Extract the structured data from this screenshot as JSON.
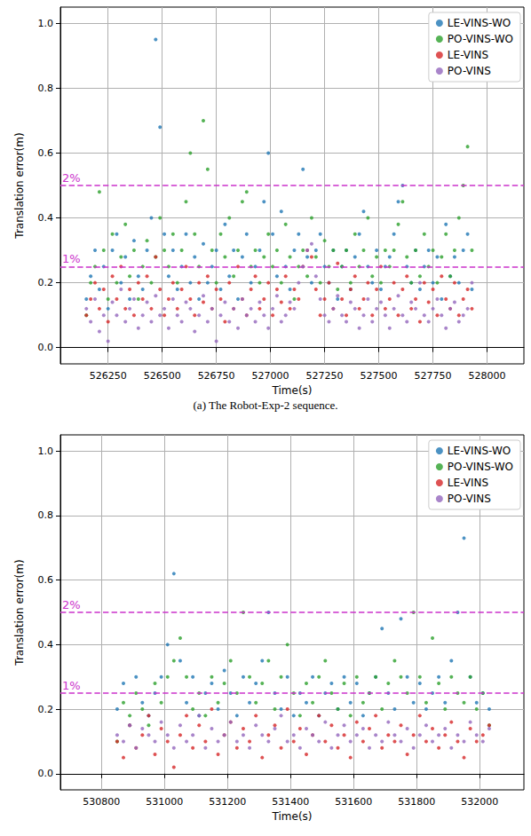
{
  "chart_data": [
    {
      "type": "scatter",
      "caption": "(a) The Robot-Exp-2 sequence.",
      "x_label": "Time(s)",
      "y_label": "Translation error(m)",
      "grid": true,
      "legend": "upper right",
      "marker": "circle",
      "xlim": [
        526030,
        528170
      ],
      "xticks": [
        526250,
        526500,
        526750,
        527000,
        527250,
        527500,
        527750,
        528000
      ],
      "ylim": [
        -0.05,
        1.05
      ],
      "yticks": [
        {
          "value": 0,
          "label": "0.0"
        },
        {
          "value": 0.2,
          "label": "0.2"
        },
        {
          "value": 0.4,
          "label": "0.4"
        },
        {
          "value": 0.6,
          "label": "0.6"
        },
        {
          "value": 0.8,
          "label": "0.8"
        },
        {
          "value": 1,
          "label": "1.0"
        }
      ],
      "reference_lines": [
        {
          "value": 0.5,
          "label": "2%"
        },
        {
          "value": 0.25,
          "label": "1%"
        }
      ],
      "x": [
        526150,
        526170,
        526190,
        526210,
        526230,
        526250,
        526270,
        526290,
        526310,
        526330,
        526350,
        526370,
        526390,
        526410,
        526430,
        526450,
        526470,
        526490,
        526510,
        526530,
        526550,
        526570,
        526590,
        526610,
        526630,
        526650,
        526670,
        526690,
        526710,
        526730,
        526750,
        526770,
        526790,
        526810,
        526830,
        526850,
        526870,
        526890,
        526910,
        526930,
        526950,
        526970,
        526990,
        527010,
        527030,
        527050,
        527070,
        527090,
        527110,
        527130,
        527150,
        527170,
        527190,
        527210,
        527230,
        527250,
        527270,
        527290,
        527310,
        527330,
        527350,
        527370,
        527390,
        527410,
        527430,
        527450,
        527470,
        527490,
        527510,
        527530,
        527550,
        527570,
        527590,
        527610,
        527630,
        527650,
        527670,
        527690,
        527710,
        527730,
        527750,
        527770,
        527790,
        527810,
        527830,
        527850,
        527870,
        527890,
        527910,
        527930
      ],
      "series": [
        {
          "name": "LE-VINS-WO",
          "color": "#1f77b4",
          "values": [
            0.15,
            0.22,
            0.3,
            0.18,
            0.25,
            0.12,
            0.3,
            0.35,
            0.2,
            0.28,
            0.15,
            0.33,
            0.22,
            0.18,
            0.3,
            0.4,
            0.95,
            0.68,
            0.35,
            0.22,
            0.3,
            0.18,
            0.25,
            0.35,
            0.2,
            0.28,
            0.15,
            0.32,
            0.2,
            0.25,
            0.3,
            0.18,
            0.38,
            0.22,
            0.3,
            0.15,
            0.28,
            0.35,
            0.2,
            0.25,
            0.3,
            0.45,
            0.6,
            0.35,
            0.22,
            0.42,
            0.25,
            0.18,
            0.3,
            0.35,
            0.55,
            0.28,
            0.2,
            0.3,
            0.35,
            0.25,
            0.2,
            0.3,
            0.15,
            0.25,
            0.3,
            0.18,
            0.28,
            0.35,
            0.42,
            0.25,
            0.2,
            0.3,
            0.18,
            0.25,
            0.28,
            0.35,
            0.45,
            0.5,
            0.25,
            0.2,
            0.3,
            0.18,
            0.25,
            0.3,
            0.2,
            0.28,
            0.15,
            0.38,
            0.22,
            0.28,
            0.2,
            0.3,
            0.35,
            0.18
          ]
        },
        {
          "name": "PO-VINS-WO",
          "color": "#2ca02c",
          "values": [
            0.1,
            0.2,
            0.25,
            0.48,
            0.3,
            0.15,
            0.35,
            0.2,
            0.28,
            0.38,
            0.22,
            0.3,
            0.15,
            0.25,
            0.33,
            0.2,
            0.28,
            0.4,
            0.3,
            0.25,
            0.35,
            0.2,
            0.3,
            0.45,
            0.6,
            0.35,
            0.25,
            0.7,
            0.55,
            0.3,
            0.2,
            0.35,
            0.28,
            0.4,
            0.22,
            0.3,
            0.45,
            0.48,
            0.25,
            0.3,
            0.2,
            0.28,
            0.35,
            0.25,
            0.3,
            0.2,
            0.38,
            0.28,
            0.15,
            0.25,
            0.3,
            0.22,
            0.4,
            0.28,
            0.2,
            0.33,
            0.25,
            0.3,
            0.18,
            0.25,
            0.3,
            0.2,
            0.35,
            0.25,
            0.3,
            0.4,
            0.22,
            0.28,
            0.2,
            0.3,
            0.25,
            0.3,
            0.38,
            0.45,
            0.28,
            0.2,
            0.3,
            0.22,
            0.35,
            0.25,
            0.3,
            0.2,
            0.28,
            0.35,
            0.22,
            0.3,
            0.4,
            0.5,
            0.62,
            0.3
          ]
        },
        {
          "name": "LE-VINS",
          "color": "#d62728",
          "values": [
            0.1,
            0.15,
            0.2,
            0.12,
            0.18,
            0.08,
            0.22,
            0.15,
            0.25,
            0.12,
            0.18,
            0.1,
            0.2,
            0.15,
            0.22,
            0.12,
            0.28,
            0.18,
            0.1,
            0.15,
            0.2,
            0.12,
            0.18,
            0.25,
            0.15,
            0.1,
            0.2,
            0.14,
            0.22,
            0.12,
            0.18,
            0.15,
            0.08,
            0.2,
            0.12,
            0.25,
            0.15,
            0.1,
            0.18,
            0.22,
            0.12,
            0.15,
            0.2,
            0.1,
            0.18,
            0.14,
            0.22,
            0.12,
            0.18,
            0.15,
            0.25,
            0.3,
            0.28,
            0.18,
            0.1,
            0.15,
            0.2,
            0.12,
            0.26,
            0.15,
            0.1,
            0.18,
            0.22,
            0.12,
            0.15,
            0.2,
            0.1,
            0.18,
            0.25,
            0.12,
            0.15,
            0.2,
            0.1,
            0.18,
            0.22,
            0.12,
            0.15,
            0.08,
            0.2,
            0.14,
            0.18,
            0.1,
            0.22,
            0.15,
            0.12,
            0.2,
            0.1,
            0.15,
            0.18,
            0.12
          ]
        },
        {
          "name": "PO-VINS",
          "color": "#9467bd",
          "values": [
            0.12,
            0.08,
            0.15,
            0.05,
            0.1,
            0.02,
            0.14,
            0.1,
            0.18,
            0.08,
            0.12,
            0.15,
            0.06,
            0.1,
            0.14,
            0.08,
            0.16,
            0.1,
            0.12,
            0.06,
            0.15,
            0.1,
            0.08,
            0.14,
            0.12,
            0.05,
            0.1,
            0.16,
            0.08,
            0.12,
            0.02,
            0.1,
            0.14,
            0.08,
            0.12,
            0.06,
            0.15,
            0.1,
            0.12,
            0.08,
            0.14,
            0.1,
            0.06,
            0.12,
            0.16,
            0.08,
            0.1,
            0.14,
            0.12,
            0.2,
            0.25,
            0.3,
            0.32,
            0.22,
            0.15,
            0.1,
            0.08,
            0.12,
            0.16,
            0.1,
            0.08,
            0.14,
            0.12,
            0.06,
            0.1,
            0.15,
            0.08,
            0.12,
            0.14,
            0.1,
            0.06,
            0.12,
            0.16,
            0.1,
            0.08,
            0.14,
            0.12,
            0.2,
            0.1,
            0.08,
            0.12,
            0.15,
            0.1,
            0.06,
            0.12,
            0.14,
            0.08,
            0.1,
            0.12,
            0.2
          ]
        }
      ]
    },
    {
      "type": "scatter",
      "x_label": "Time(s)",
      "y_label": "Translation error(m)",
      "grid": true,
      "legend": "upper right",
      "marker": "circle",
      "xlim": [
        530670,
        532140
      ],
      "xticks": [
        530800,
        531000,
        531200,
        531400,
        531600,
        531800,
        532000
      ],
      "ylim": [
        -0.05,
        1.05
      ],
      "yticks": [
        {
          "value": 0,
          "label": "0.0"
        },
        {
          "value": 0.2,
          "label": "0.2"
        },
        {
          "value": 0.4,
          "label": "0.4"
        },
        {
          "value": 0.6,
          "label": "0.6"
        },
        {
          "value": 0.8,
          "label": "0.8"
        },
        {
          "value": 1,
          "label": "1.0"
        }
      ],
      "reference_lines": [
        {
          "value": 0.5,
          "label": "2%"
        },
        {
          "value": 0.25,
          "label": "1%"
        }
      ],
      "x": [
        530850,
        530870,
        530890,
        530910,
        530930,
        530950,
        530970,
        530990,
        531010,
        531030,
        531050,
        531070,
        531090,
        531110,
        531130,
        531150,
        531170,
        531190,
        531210,
        531230,
        531250,
        531270,
        531290,
        531310,
        531330,
        531350,
        531370,
        531390,
        531410,
        531430,
        531450,
        531470,
        531490,
        531510,
        531530,
        531550,
        531570,
        531590,
        531610,
        531630,
        531650,
        531670,
        531690,
        531710,
        531730,
        531750,
        531770,
        531790,
        531810,
        531830,
        531850,
        531870,
        531890,
        531910,
        531930,
        531950,
        531970,
        531990,
        532010,
        532030
      ],
      "series": [
        {
          "name": "LE-VINS-WO",
          "color": "#1f77b4",
          "values": [
            0.2,
            0.28,
            0.15,
            0.3,
            0.22,
            0.18,
            0.25,
            0.3,
            0.4,
            0.62,
            0.35,
            0.22,
            0.3,
            0.18,
            0.25,
            0.28,
            0.2,
            0.32,
            0.25,
            0.18,
            0.3,
            0.22,
            0.28,
            0.35,
            0.5,
            0.25,
            0.2,
            0.3,
            0.18,
            0.25,
            0.22,
            0.3,
            0.18,
            0.25,
            0.28,
            0.2,
            0.3,
            0.22,
            0.28,
            0.18,
            0.25,
            0.3,
            0.45,
            0.25,
            0.2,
            0.48,
            0.3,
            0.22,
            0.28,
            0.2,
            0.25,
            0.3,
            0.22,
            0.35,
            0.5,
            0.73,
            0.3,
            0.22,
            0.25,
            0.2
          ]
        },
        {
          "name": "PO-VINS-WO",
          "color": "#2ca02c",
          "values": [
            0.1,
            0.22,
            0.18,
            0.25,
            0.2,
            0.15,
            0.28,
            0.22,
            0.3,
            0.35,
            0.42,
            0.3,
            0.2,
            0.25,
            0.18,
            0.3,
            0.22,
            0.28,
            0.35,
            0.25,
            0.5,
            0.3,
            0.22,
            0.28,
            0.35,
            0.2,
            0.3,
            0.4,
            0.25,
            0.18,
            0.28,
            0.22,
            0.3,
            0.35,
            0.25,
            0.2,
            0.28,
            0.18,
            0.3,
            0.22,
            0.25,
            0.3,
            0.2,
            0.28,
            0.35,
            0.3,
            0.25,
            0.5,
            0.3,
            0.22,
            0.42,
            0.28,
            0.2,
            0.3,
            0.25,
            0.22,
            0.3,
            0.2,
            0.25,
            0.15
          ]
        },
        {
          "name": "LE-VINS",
          "color": "#d62728",
          "values": [
            0.1,
            0.05,
            0.15,
            0.08,
            0.12,
            0.18,
            0.06,
            0.14,
            0.1,
            0.02,
            0.12,
            0.18,
            0.08,
            0.15,
            0.1,
            0.2,
            0.06,
            0.12,
            0.16,
            0.08,
            0.14,
            0.1,
            0.18,
            0.05,
            0.12,
            0.15,
            0.08,
            0.2,
            0.1,
            0.14,
            0.06,
            0.12,
            0.18,
            0.1,
            0.15,
            0.08,
            0.12,
            0.05,
            0.16,
            0.1,
            0.14,
            0.18,
            0.08,
            0.12,
            0.1,
            0.15,
            0.06,
            0.12,
            0.18,
            0.1,
            0.14,
            0.08,
            0.12,
            0.16,
            0.1,
            0.05,
            0.14,
            0.1,
            0.12,
            0.15
          ]
        },
        {
          "name": "PO-VINS",
          "color": "#9467bd",
          "values": [
            0.12,
            0.1,
            0.15,
            0.08,
            0.14,
            0.12,
            0.1,
            0.16,
            0.12,
            0.08,
            0.15,
            0.1,
            0.12,
            0.18,
            0.08,
            0.14,
            0.1,
            0.12,
            0.16,
            0.1,
            0.12,
            0.08,
            0.15,
            0.12,
            0.1,
            0.14,
            0.18,
            0.1,
            0.12,
            0.08,
            0.14,
            0.12,
            0.1,
            0.16,
            0.08,
            0.12,
            0.15,
            0.1,
            0.12,
            0.14,
            0.08,
            0.12,
            0.1,
            0.16,
            0.12,
            0.1,
            0.14,
            0.08,
            0.12,
            0.15,
            0.1,
            0.12,
            0.14,
            0.08,
            0.12,
            0.1,
            0.16,
            0.12,
            0.1,
            0.14
          ]
        }
      ]
    }
  ]
}
